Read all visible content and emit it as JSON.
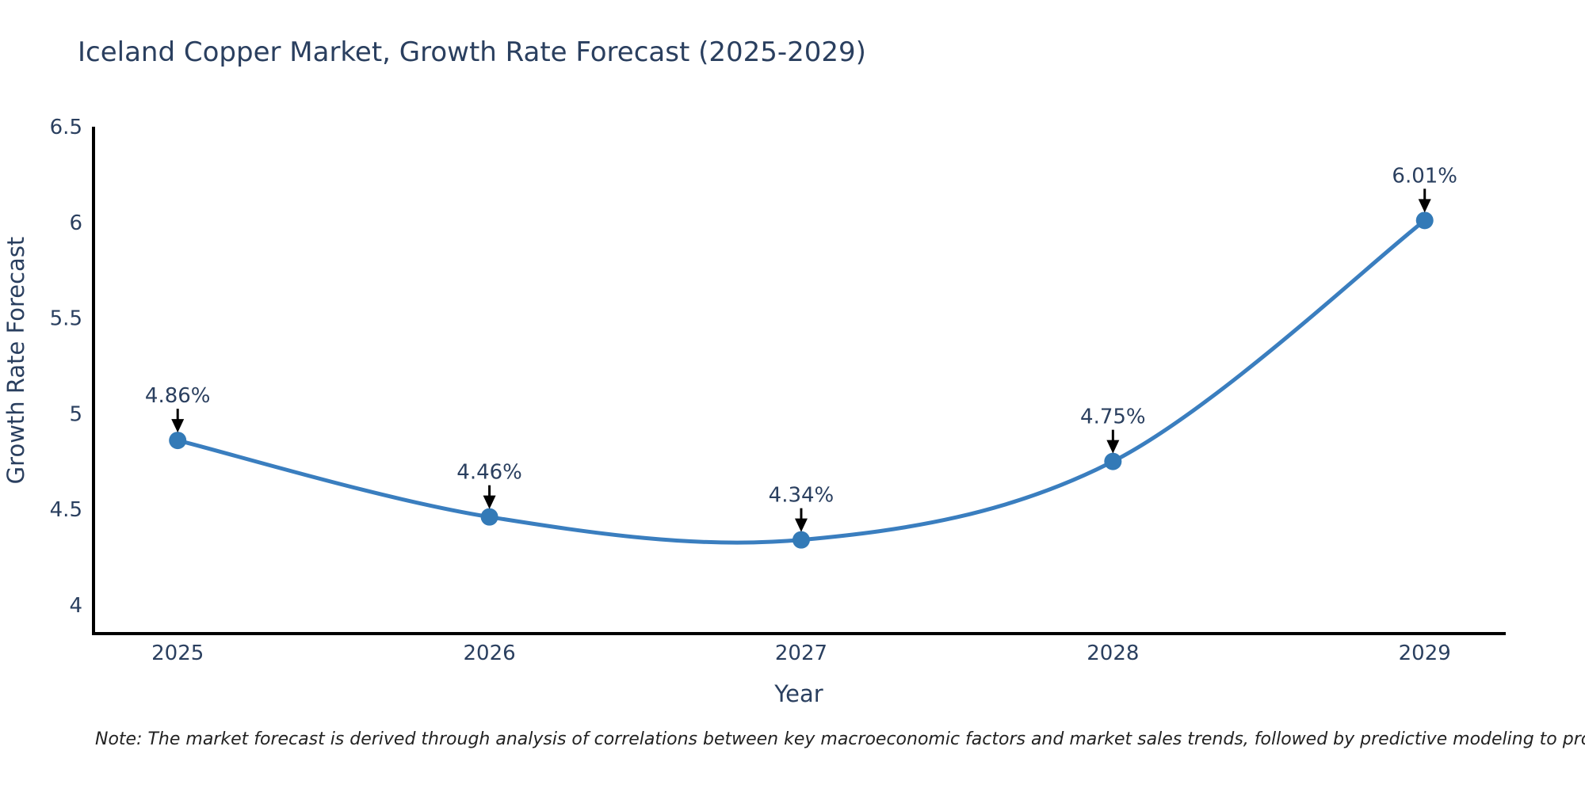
{
  "chart_data": {
    "type": "line",
    "line_shape": "spline",
    "title": "Iceland Copper Market, Growth Rate Forecast (2025-2029)",
    "xlabel": "Year",
    "ylabel": "Growth Rate Forecast",
    "x": [
      2025,
      2026,
      2027,
      2028,
      2029
    ],
    "values": [
      4.86,
      4.46,
      4.34,
      4.75,
      6.01
    ],
    "point_labels": [
      "4.86%",
      "4.46%",
      "4.34%",
      "4.75%",
      "6.01%"
    ],
    "xtick_labels": [
      "2025",
      "2026",
      "2027",
      "2028",
      "2029"
    ],
    "yticks": [
      4,
      4.5,
      5,
      5.5,
      6,
      6.5
    ],
    "ytick_labels": [
      "4",
      "4.5",
      "5",
      "5.5",
      "6",
      "6.5"
    ],
    "xlim": [
      2024.73,
      2029.26
    ],
    "ylim": [
      3.85,
      6.5
    ],
    "grid": false,
    "legend": "none",
    "line_color": "#3a7ebf",
    "marker_color": "#337ab7",
    "axis_color": "#000000",
    "text_color": "#2a3f5f",
    "annotation_arrow_color": "#000000"
  },
  "note": {
    "text": "Note: The market forecast is derived through analysis of correlations between key macroeconomic factors and market sales trends, followed by predictive modeling to project future sales"
  }
}
